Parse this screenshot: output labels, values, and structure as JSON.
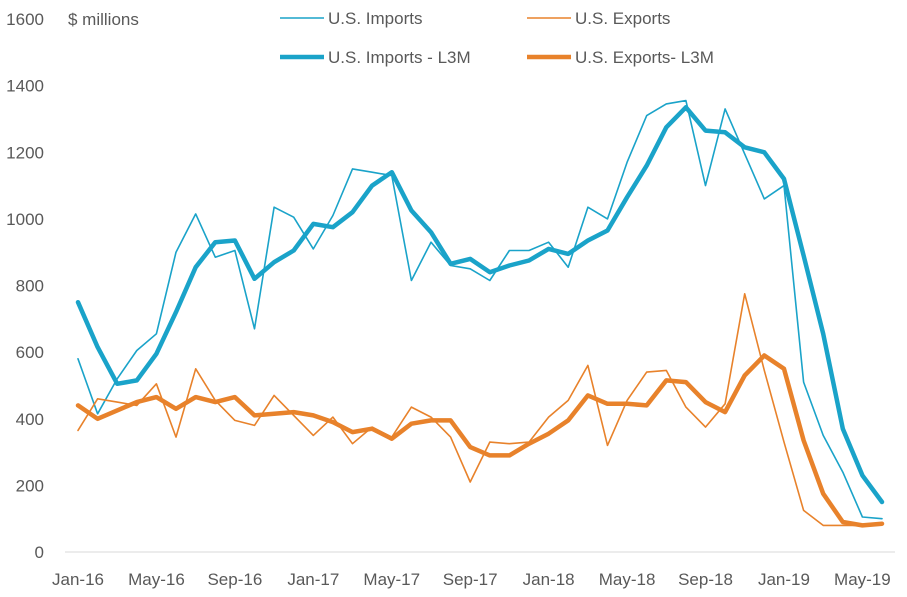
{
  "chart_data": {
    "type": "line",
    "unit_label": "$ millions",
    "ylim": [
      0,
      1600
    ],
    "y_ticks": [
      "0",
      "200",
      "400",
      "600",
      "800",
      "1000",
      "1200",
      "1400",
      "1600"
    ],
    "x": [
      "Jan-16",
      "Feb-16",
      "Mar-16",
      "Apr-16",
      "May-16",
      "Jun-16",
      "Jul-16",
      "Aug-16",
      "Sep-16",
      "Oct-16",
      "Nov-16",
      "Dec-16",
      "Jan-17",
      "Feb-17",
      "Mar-17",
      "Apr-17",
      "May-17",
      "Jun-17",
      "Jul-17",
      "Aug-17",
      "Sep-17",
      "Oct-17",
      "Nov-17",
      "Dec-17",
      "Jan-18",
      "Feb-18",
      "Mar-18",
      "Apr-18",
      "May-18",
      "Jun-18",
      "Jul-18",
      "Aug-18",
      "Sep-18",
      "Oct-18",
      "Nov-18",
      "Dec-18",
      "Jan-19",
      "Feb-19",
      "Mar-19",
      "Apr-19",
      "May-19",
      "Jun-19"
    ],
    "x_tick_labels": [
      "Jan-16",
      "May-16",
      "Sep-16",
      "Jan-17",
      "May-17",
      "Sep-17",
      "Jan-18",
      "May-18",
      "Sep-18",
      "Jan-19",
      "May-19"
    ],
    "grid": false,
    "legend_position": "top",
    "series": [
      {
        "name": "U.S. Imports",
        "color": "#1AA3C9",
        "style": "thin",
        "values": [
          580,
          415,
          520,
          605,
          655,
          900,
          1015,
          885,
          905,
          670,
          1035,
          1005,
          910,
          1010,
          1150,
          1140,
          1130,
          815,
          930,
          860,
          850,
          815,
          905,
          905,
          930,
          855,
          1035,
          1000,
          1170,
          1310,
          1345,
          1355,
          1100,
          1330,
          1195,
          1060,
          1100,
          510,
          350,
          240,
          105,
          100
        ]
      },
      {
        "name": "U.S. Exports",
        "color": "#E8822B",
        "style": "thin",
        "values": [
          365,
          460,
          450,
          440,
          505,
          345,
          550,
          455,
          395,
          380,
          470,
          410,
          350,
          405,
          325,
          375,
          345,
          435,
          405,
          345,
          210,
          330,
          325,
          330,
          405,
          455,
          560,
          320,
          455,
          540,
          545,
          435,
          375,
          445,
          775,
          545,
          330,
          125,
          80,
          80,
          80,
          85
        ]
      },
      {
        "name": "U.S. Imports - L3M",
        "color": "#1AA3C9",
        "style": "thick",
        "values": [
          750,
          615,
          505,
          515,
          595,
          720,
          855,
          930,
          935,
          820,
          870,
          905,
          985,
          975,
          1020,
          1100,
          1140,
          1025,
          960,
          865,
          880,
          840,
          860,
          875,
          910,
          895,
          935,
          965,
          1065,
          1160,
          1275,
          1335,
          1265,
          1260,
          1215,
          1200,
          1120,
          890,
          655,
          370,
          230,
          150
        ]
      },
      {
        "name": "U.S. Exports- L3M",
        "color": "#E8822B",
        "style": "thick",
        "values": [
          440,
          400,
          425,
          450,
          465,
          430,
          465,
          450,
          465,
          410,
          415,
          420,
          410,
          390,
          360,
          370,
          340,
          385,
          395,
          395,
          315,
          290,
          290,
          325,
          355,
          395,
          470,
          445,
          445,
          440,
          515,
          510,
          450,
          420,
          530,
          590,
          550,
          335,
          175,
          90,
          80,
          85
        ]
      }
    ]
  }
}
